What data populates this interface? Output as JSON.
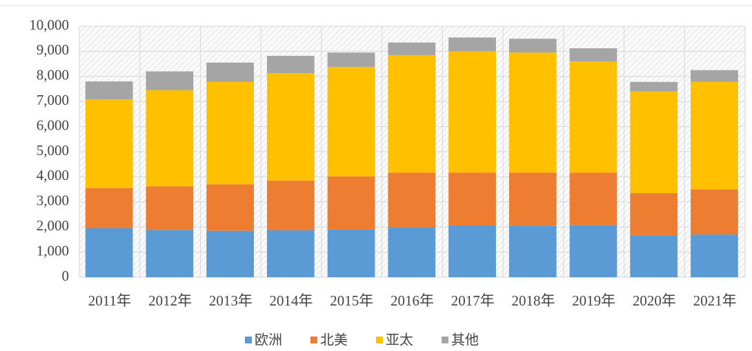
{
  "chart_data": {
    "type": "stacked_bar",
    "categories": [
      "2011年",
      "2012年",
      "2013年",
      "2014年",
      "2015年",
      "2016年",
      "2017年",
      "2018年",
      "2019年",
      "2020年",
      "2021年"
    ],
    "series": [
      {
        "name": "欧洲",
        "color": "#5b9bd5",
        "values": [
          1950,
          1880,
          1850,
          1870,
          1900,
          1990,
          2060,
          2050,
          2080,
          1670,
          1700
        ]
      },
      {
        "name": "北美",
        "color": "#ed7d31",
        "values": [
          1600,
          1740,
          1850,
          1980,
          2120,
          2180,
          2110,
          2120,
          2090,
          1680,
          1800
        ]
      },
      {
        "name": "亚太",
        "color": "#ffc000",
        "values": [
          3530,
          3830,
          4080,
          4280,
          4360,
          4680,
          4830,
          4780,
          4430,
          4050,
          4280
        ]
      },
      {
        "name": "其他",
        "color": "#a5a5a5",
        "values": [
          720,
          750,
          770,
          690,
          570,
          500,
          550,
          550,
          520,
          380,
          470
        ]
      }
    ],
    "ylim": [
      0,
      10000
    ],
    "yticks": [
      0,
      {
        "value": 1000,
        "label": "1,000"
      },
      {
        "value": 2000,
        "label": "2,000"
      },
      {
        "value": 3000,
        "label": "3,000"
      },
      {
        "value": 4000,
        "label": "4,000"
      },
      {
        "value": 5000,
        "label": "5,000"
      },
      {
        "value": 6000,
        "label": "6,000"
      },
      {
        "value": 7000,
        "label": "7,000"
      },
      {
        "value": 8000,
        "label": "8,000"
      },
      {
        "value": 9000,
        "label": "9,000"
      },
      {
        "value": 10000,
        "label": "10,000"
      }
    ],
    "grid": true,
    "legend": "bottom"
  }
}
